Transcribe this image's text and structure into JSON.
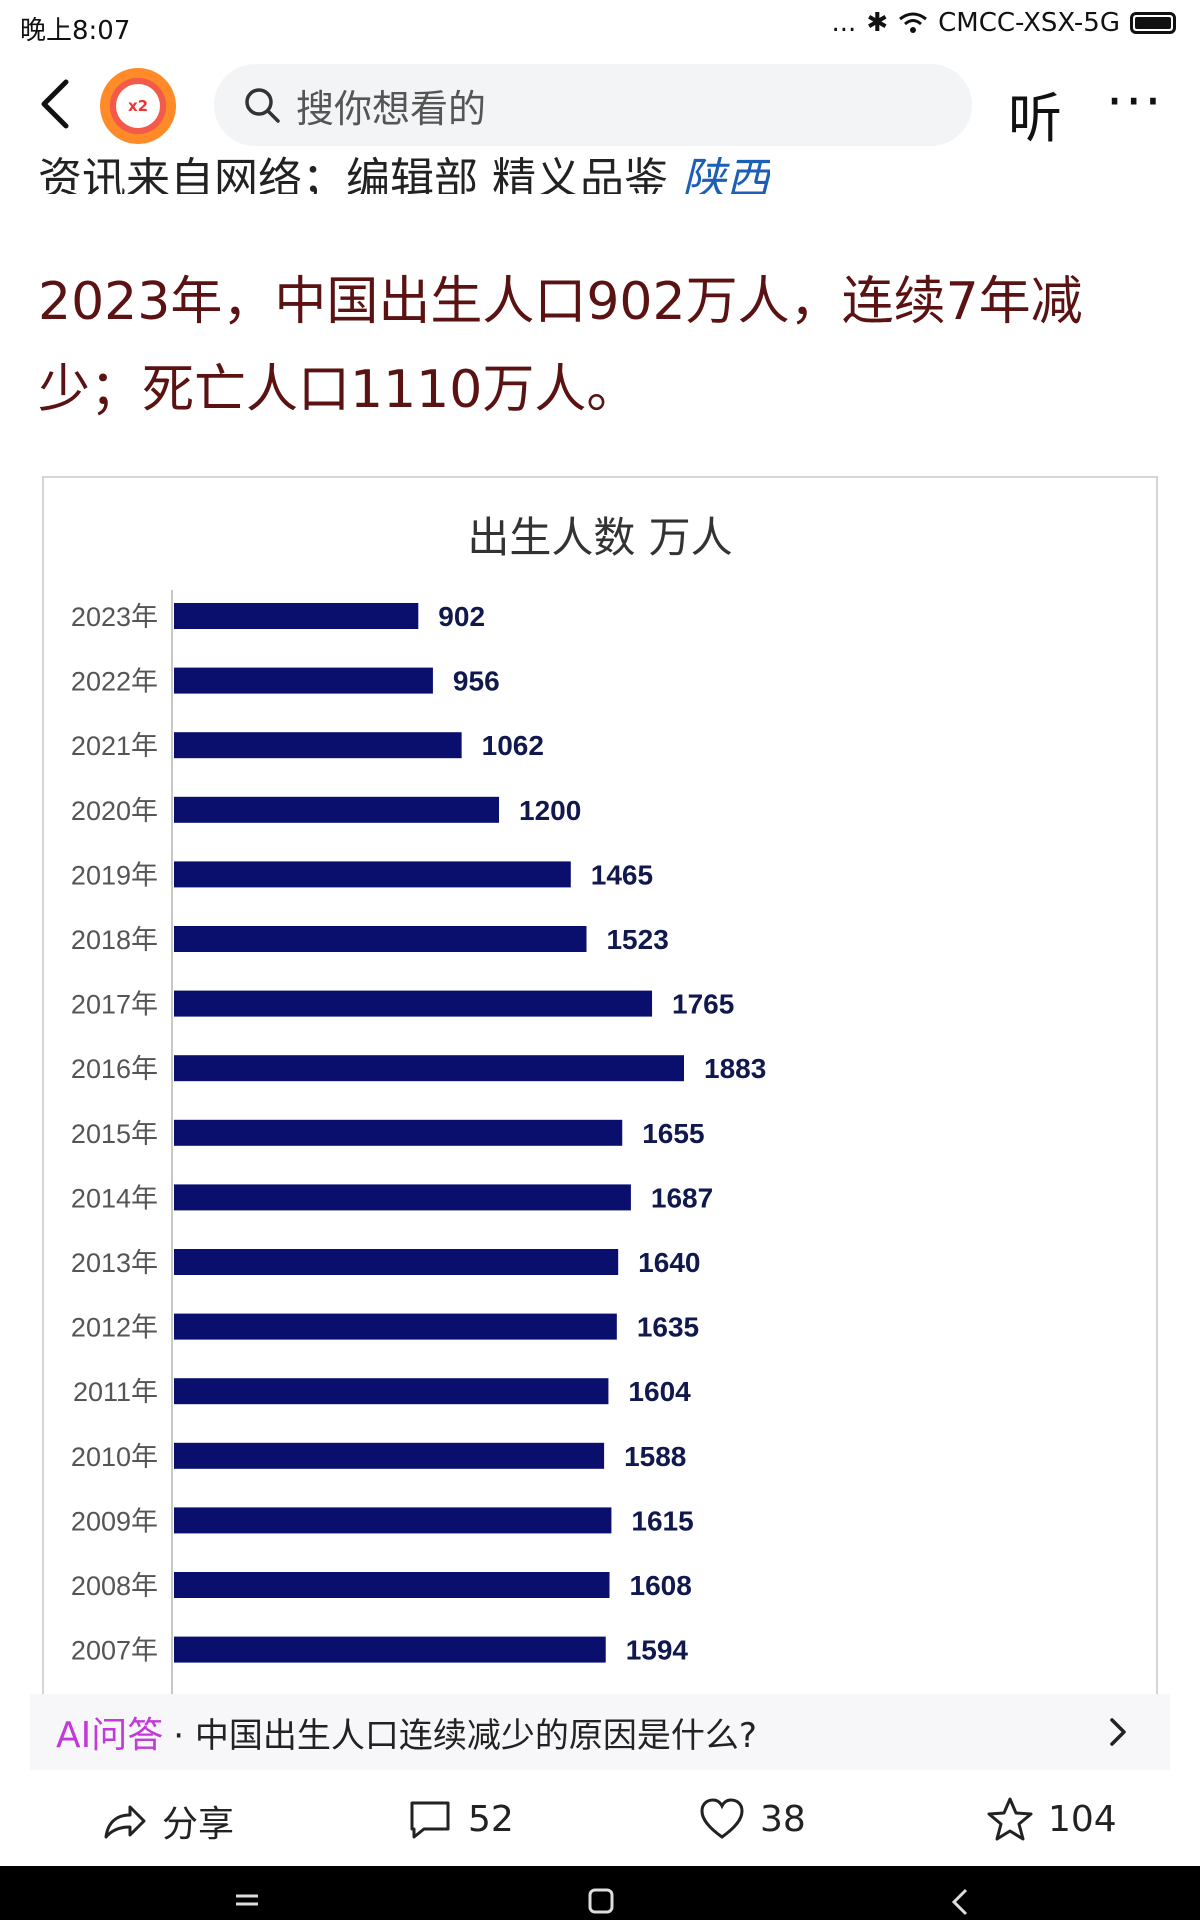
{
  "status": {
    "time": "晚上8:07",
    "carrier": "CMCC-XSX-5G",
    "dots": "...",
    "bluetooth": "✱"
  },
  "header": {
    "search_placeholder": "搜你想看的",
    "listen_label": "听",
    "more_label": "···"
  },
  "article": {
    "source_line": "资讯来自网络；编辑部 精义品鉴",
    "source_link": "陕西",
    "headline_line1": "2023年，中国出生人口902万人，连续7年减",
    "headline_line2": "少；死亡人口1110万人。"
  },
  "chart_title": "出生人数 万人",
  "chart_data": {
    "type": "bar",
    "orientation": "horizontal",
    "title": "出生人数 万人",
    "categories": [
      "2023年",
      "2022年",
      "2021年",
      "2020年",
      "2019年",
      "2018年",
      "2017年",
      "2016年",
      "2015年",
      "2014年",
      "2013年",
      "2012年",
      "2011年",
      "2010年",
      "2009年",
      "2008年",
      "2007年"
    ],
    "values": [
      902,
      956,
      1062,
      1200,
      1465,
      1523,
      1765,
      1883,
      1655,
      1687,
      1640,
      1635,
      1604,
      1588,
      1615,
      1608,
      1594
    ],
    "data_labels": true,
    "bar_color": "#0a0f6e",
    "grid": false
  },
  "ai_bar": {
    "label": "AI问答",
    "question": "· 中国出生人口连续减少的原因是什么?"
  },
  "actions": {
    "share_label": "分享",
    "comments_count": "52",
    "likes_count": "38",
    "favorites_count": "104"
  },
  "colors": {
    "headline": "#5a1212",
    "link": "#1b5fb6",
    "ai": "#c23ad8",
    "bar": "#0a0f6e"
  }
}
